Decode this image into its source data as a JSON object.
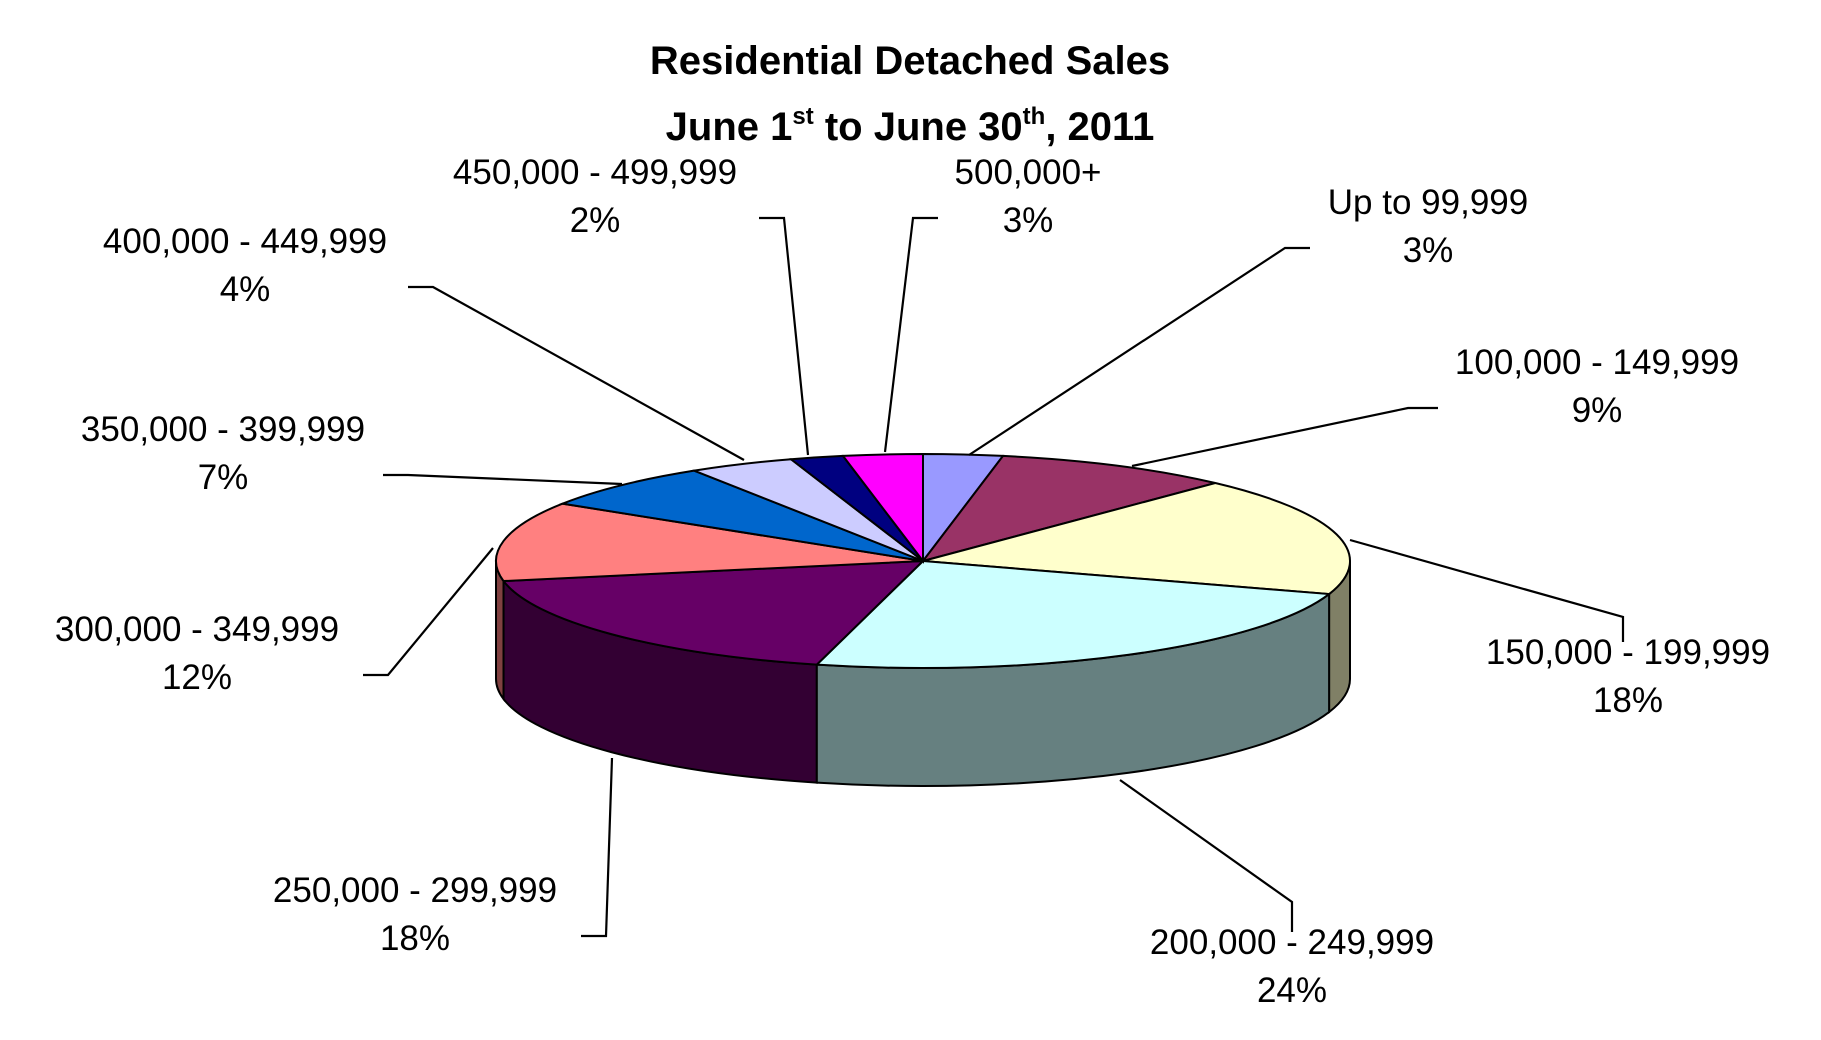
{
  "chart_data": {
    "type": "pie",
    "title_line1": "Residential Detached Sales",
    "title_line2_parts": [
      "June 1",
      "st",
      " to June 30",
      "th",
      ", 2011"
    ],
    "categories": [
      "Up to 99,999",
      "100,000 - 149,999",
      "150,000 - 199,999",
      "200,000 - 249,999",
      "250,000 - 299,999",
      "300,000 - 349,999",
      "350,000 - 399,999",
      "400,000 - 449,999",
      "450,000 - 499,999",
      "500,000+"
    ],
    "values": [
      3,
      9,
      18,
      24,
      18,
      12,
      7,
      4,
      2,
      3
    ],
    "value_labels": [
      "3%",
      "9%",
      "18%",
      "24%",
      "18%",
      "12%",
      "7%",
      "4%",
      "2%",
      "3%"
    ],
    "colors": [
      "#9999FF",
      "#993366",
      "#FFFFCC",
      "#CCFFFF",
      "#660066",
      "#FF8080",
      "#0066CC",
      "#CCCCFF",
      "#000080",
      "#FF00FF"
    ],
    "style": "3d-exploded-none",
    "legend": "none",
    "grid": false
  }
}
